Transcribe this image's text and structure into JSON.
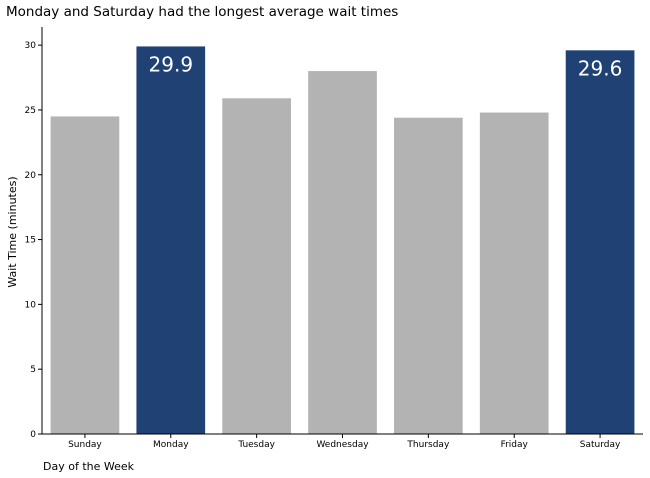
{
  "chart_data": {
    "type": "bar",
    "title": "Monday and Saturday had the longest average wait times",
    "xlabel": "Day of the Week",
    "ylabel": "Wait Time (minutes)",
    "categories": [
      "Sunday",
      "Monday",
      "Tuesday",
      "Wednesday",
      "Thursday",
      "Friday",
      "Saturday"
    ],
    "values": [
      24.5,
      29.9,
      25.9,
      28.0,
      24.4,
      24.8,
      29.6
    ],
    "highlighted": [
      "Monday",
      "Saturday"
    ],
    "data_labels": [
      {
        "category": "Monday",
        "text": "29.9"
      },
      {
        "category": "Saturday",
        "text": "29.6"
      }
    ],
    "ylim": [
      0,
      31.4
    ],
    "yticks": [
      0,
      5,
      10,
      15,
      20,
      25,
      30
    ],
    "grid": false,
    "colors": {
      "highlight": "#1f4173",
      "default": "#b3b3b3",
      "axis": "#000000",
      "label": "#ffffff"
    }
  }
}
